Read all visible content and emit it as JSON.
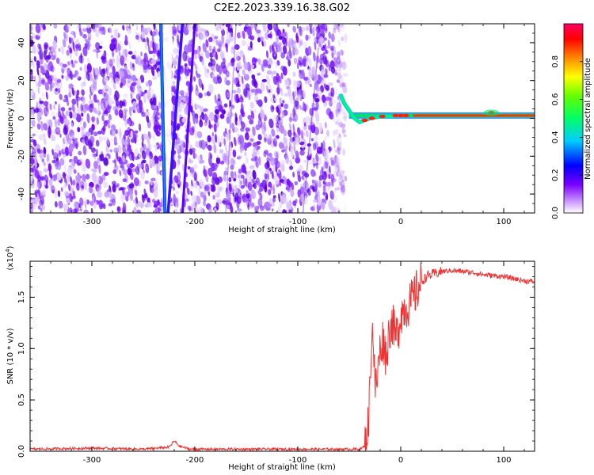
{
  "title": "C2E2.2023.339.16.38.G02",
  "chart_data": [
    {
      "type": "heatmap",
      "xlabel": "Height of straight line (km)",
      "ylabel": "Frequency (Hz)",
      "xlim": [
        -360,
        130
      ],
      "ylim": [
        -50,
        50
      ],
      "xticks": [
        -300,
        -200,
        -100,
        0,
        100
      ],
      "yticks": [
        -40,
        -20,
        0,
        20,
        40
      ],
      "colorbar": {
        "label": "Normalized spectral amplitude",
        "range": [
          0,
          1
        ],
        "ticks": [
          0.0,
          0.2,
          0.4,
          0.6,
          0.8
        ]
      },
      "features": {
        "noise_region_x": [
          -360,
          -58
        ],
        "streak_1": {
          "x_top": -233,
          "x_bottom": -229
        },
        "streak_2": {
          "x_top": -212,
          "x_bottom": -226
        },
        "streak_3": {
          "x_top": -200,
          "x_bottom": -212
        },
        "signal_line": {
          "x_range": [
            -58,
            130
          ],
          "frequency": 1.5
        }
      }
    },
    {
      "type": "line",
      "xlabel": "Height of straight line (km)",
      "ylabel": "SNR (10 * v/v)",
      "yscale_label": "(x10",
      "yscale_exponent": "4",
      "yscale_close": ")",
      "xlim": [
        -360,
        130
      ],
      "ylim": [
        0,
        1.85
      ],
      "xticks": [
        -300,
        -200,
        -100,
        0,
        100
      ],
      "yticks": [
        "0.0",
        "0.5",
        "1.0",
        "1.5"
      ],
      "color": "#ee3333",
      "series": [
        {
          "x": [
            -360,
            -300,
            -250,
            -225,
            -220,
            -215,
            -205,
            -150,
            -100,
            -60,
            -40,
            -35,
            -31,
            -29,
            -27,
            -25,
            -23,
            -20,
            -17,
            -14,
            -11,
            -8,
            -5,
            -2,
            0,
            5,
            10,
            15,
            20,
            25,
            30,
            40,
            50,
            60,
            70,
            80,
            90,
            100,
            110,
            120,
            130
          ],
          "values": [
            0.02,
            0.03,
            0.02,
            0.04,
            0.1,
            0.05,
            0.02,
            0.02,
            0.02,
            0.02,
            0.02,
            0.05,
            0.3,
            1.0,
            1.2,
            0.6,
            0.7,
            1.0,
            1.1,
            0.9,
            1.2,
            1.25,
            1.1,
            1.2,
            1.35,
            1.4,
            1.45,
            1.55,
            1.65,
            1.7,
            1.72,
            1.75,
            1.76,
            1.75,
            1.74,
            1.72,
            1.71,
            1.7,
            1.68,
            1.66,
            1.65
          ]
        }
      ]
    }
  ]
}
